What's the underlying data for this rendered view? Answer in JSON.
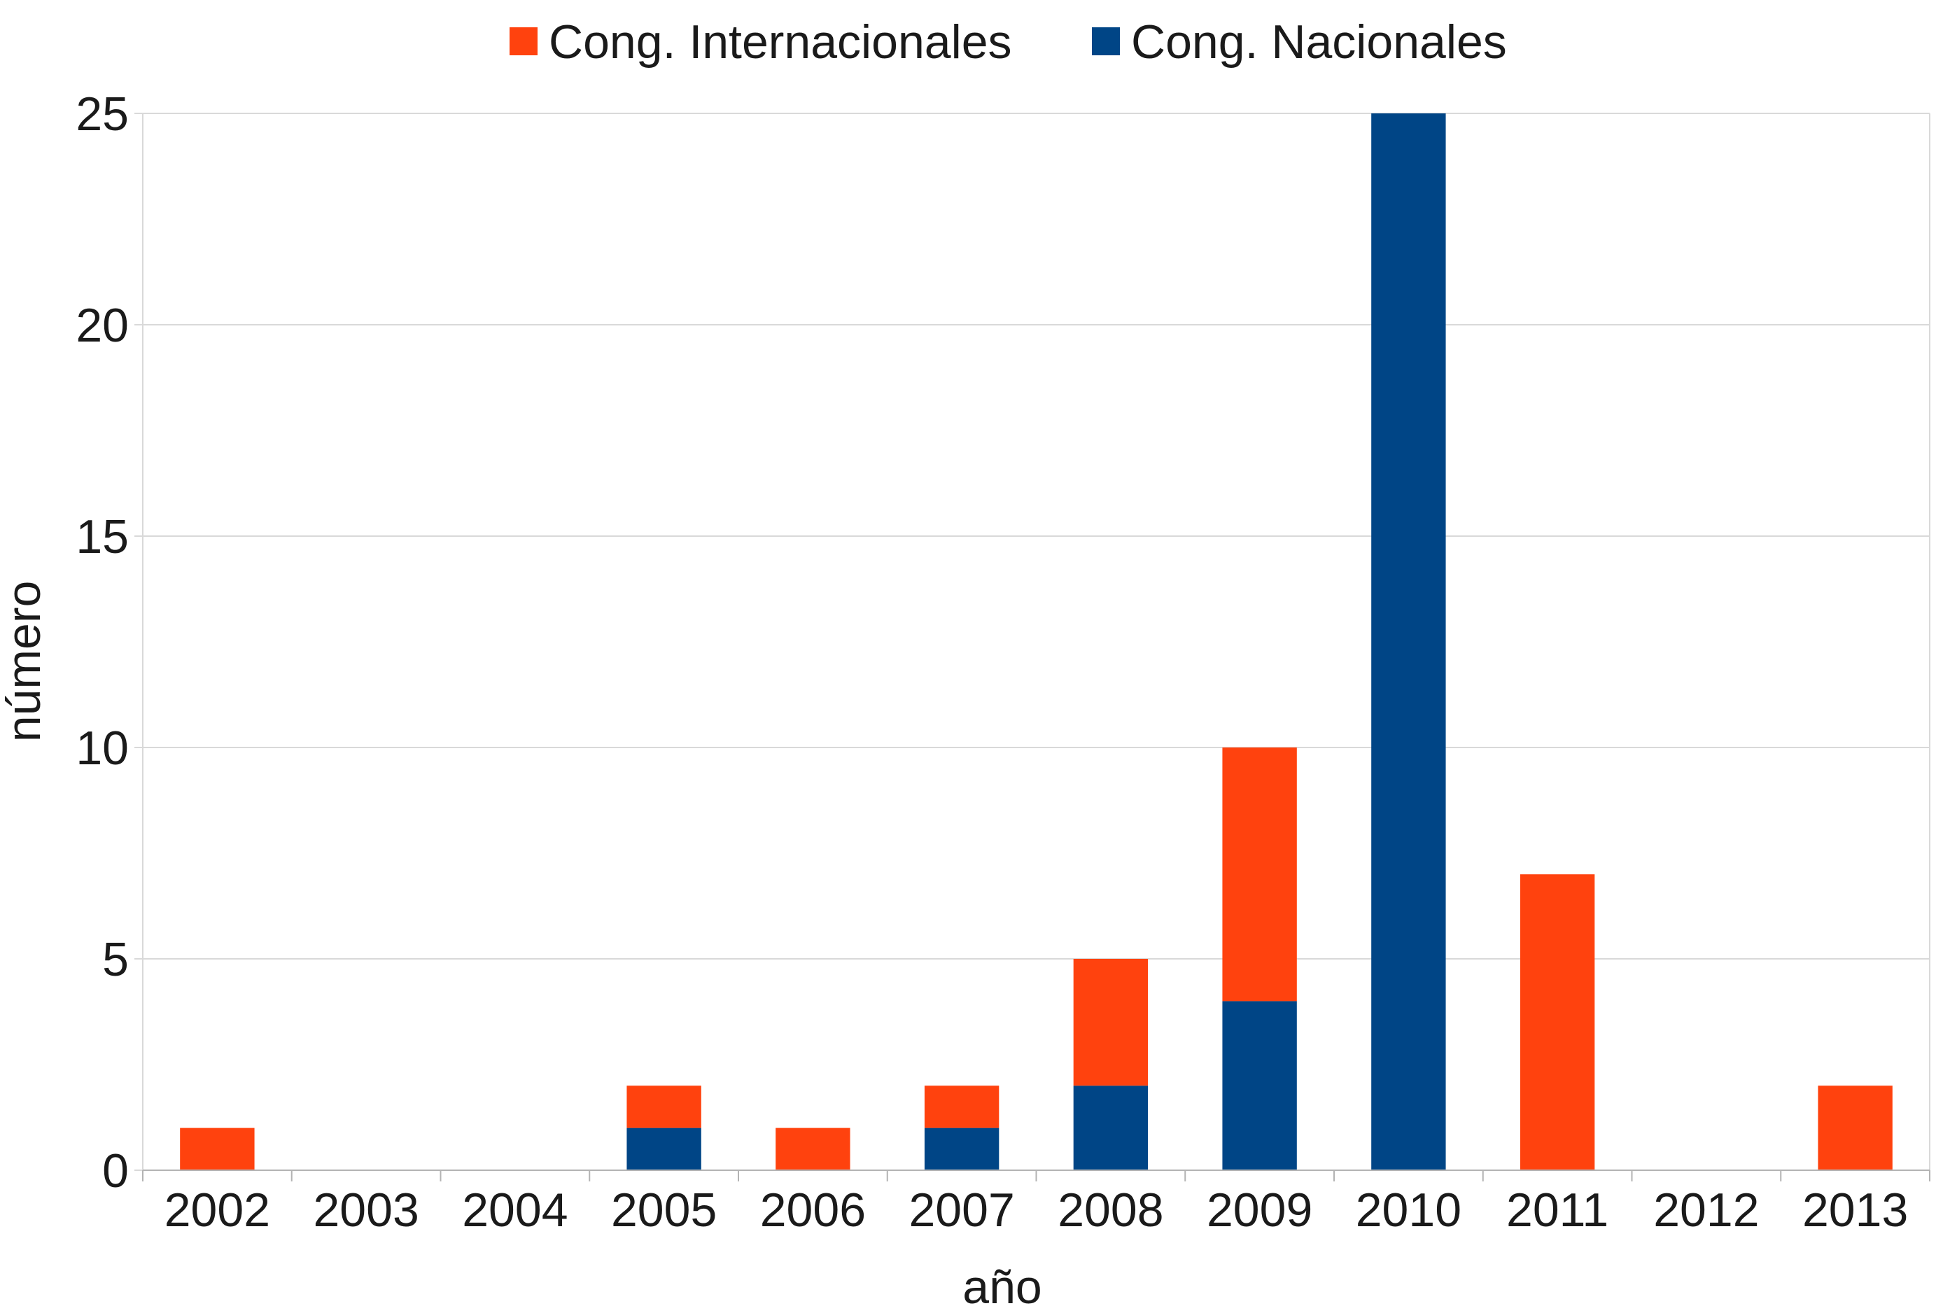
{
  "chart_data": {
    "type": "bar",
    "stacked": true,
    "categories": [
      "2002",
      "2003",
      "2004",
      "2005",
      "2006",
      "2007",
      "2008",
      "2009",
      "2010",
      "2011",
      "2012",
      "2013"
    ],
    "series": [
      {
        "name": "Cong. Nacionales",
        "color": "#004586",
        "values": [
          0,
          0,
          0,
          1,
          0,
          1,
          2,
          4,
          25,
          0,
          0,
          0
        ]
      },
      {
        "name": "Cong. Internacionales",
        "color": "#ff420e",
        "values": [
          1,
          0,
          0,
          1,
          1,
          1,
          3,
          6,
          0,
          7,
          0,
          2
        ]
      }
    ],
    "legend": {
      "position": "top",
      "items": [
        {
          "label": "Cong. Internacionales",
          "color": "#ff420e"
        },
        {
          "label": "Cong. Nacionales",
          "color": "#004586"
        }
      ]
    },
    "xlabel": "año",
    "ylabel": "número",
    "ylim": [
      0,
      25
    ],
    "yticks": [
      0,
      5,
      10,
      15,
      20,
      25
    ],
    "grid": true,
    "gridColor": "#d9d9d9"
  }
}
